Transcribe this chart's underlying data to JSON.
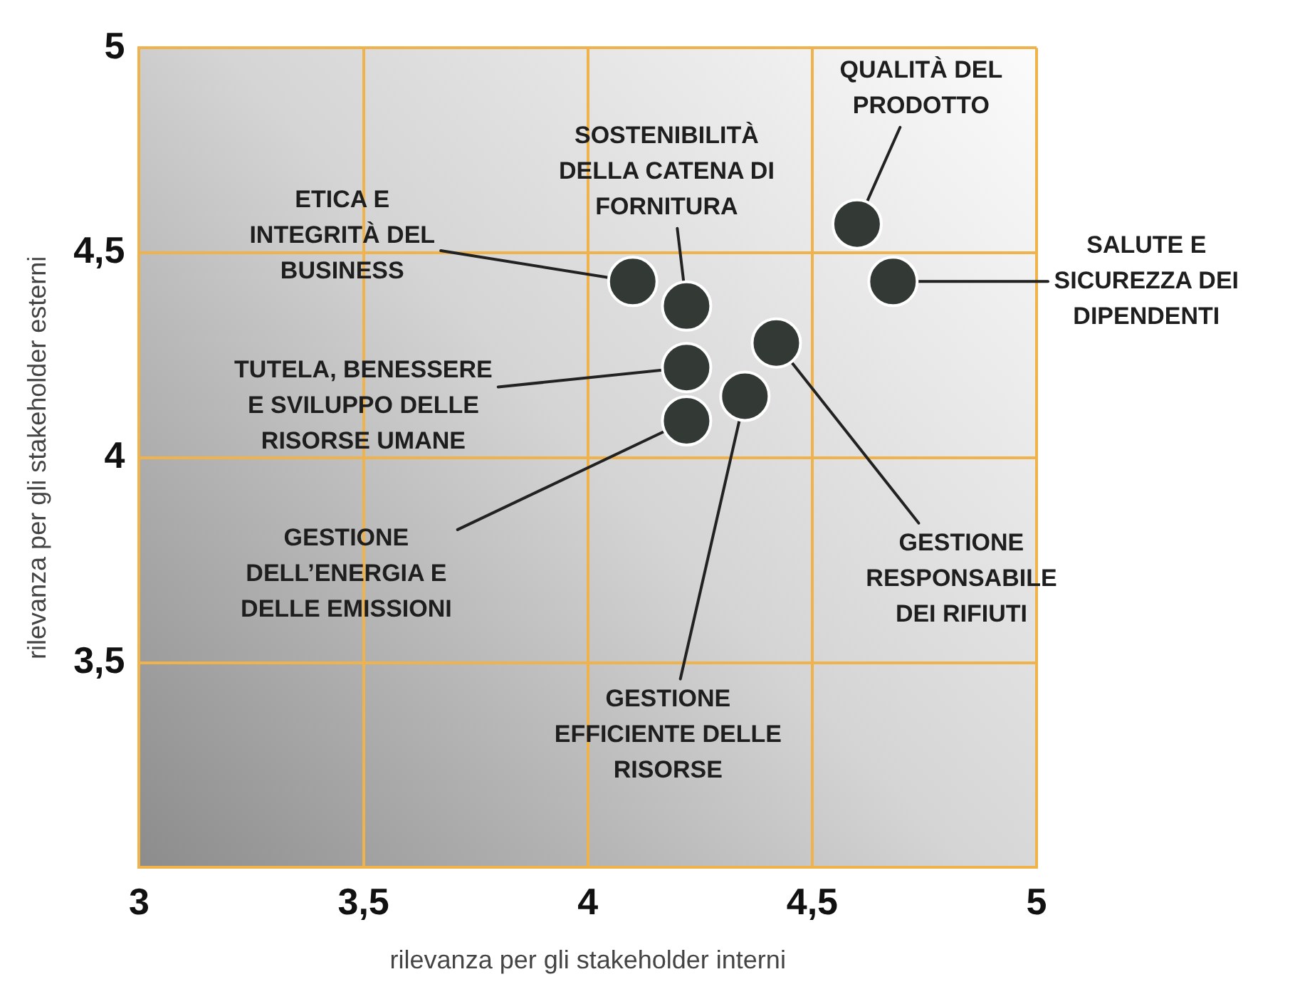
{
  "chart_data": {
    "type": "scatter",
    "xlabel": "rilevanza per gli stakeholder interni",
    "ylabel": "rilevanza per gli stakeholder esterni",
    "series": [
      {
        "color": "#333a36",
        "x": [
          4.6,
          4.68,
          4.1,
          4.22,
          4.22,
          4.42,
          4.35,
          4.22
        ],
        "values": [
          4.57,
          4.43,
          4.43,
          4.37,
          4.22,
          4.28,
          4.15,
          4.09
        ]
      }
    ],
    "xlim": [
      3,
      5
    ],
    "ylim": [
      3,
      5
    ],
    "xticks": [
      3,
      {
        "value": 3.5,
        "label": "3,5"
      },
      4,
      {
        "value": 4.5,
        "label": "4,5"
      },
      5
    ],
    "yticks": [
      {
        "value": 3,
        "label": null
      },
      {
        "value": 3.5,
        "label": "3,5"
      },
      4,
      {
        "value": 4.5,
        "label": "4,5"
      },
      5
    ],
    "grid": true,
    "legend": false,
    "marker": "circle",
    "annotations": [
      {
        "text": "QUALITÀ DEL PRODOTTO",
        "x": 4.6,
        "y": 4.57
      },
      {
        "text": "SALUTE E SICUREZZA DEI DIPENDENTI",
        "x": 4.68,
        "y": 4.43
      },
      {
        "text": "ETICA E INTEGRITÀ DEL BUSINESS",
        "x": 4.1,
        "y": 4.43
      },
      {
        "text": "SOSTENIBILITÀ DELLA CATENA DI FORNITURA",
        "x": 4.22,
        "y": 4.37
      },
      {
        "text": "TUTELA, BENESSERE E SVILUPPO DELLE RISORSE UMANE",
        "x": 4.22,
        "y": 4.22
      },
      {
        "text": "GESTIONE RESPONSABILE DEI RIFIUTI",
        "x": 4.42,
        "y": 4.28
      },
      {
        "text": "GESTIONE EFFICIENTE DELLE RISORSE",
        "x": 4.35,
        "y": 4.15
      },
      {
        "text": "GESTIONE DELL’ENERGIA E DELLE EMISSIONI",
        "x": 4.22,
        "y": 4.09
      }
    ]
  }
}
